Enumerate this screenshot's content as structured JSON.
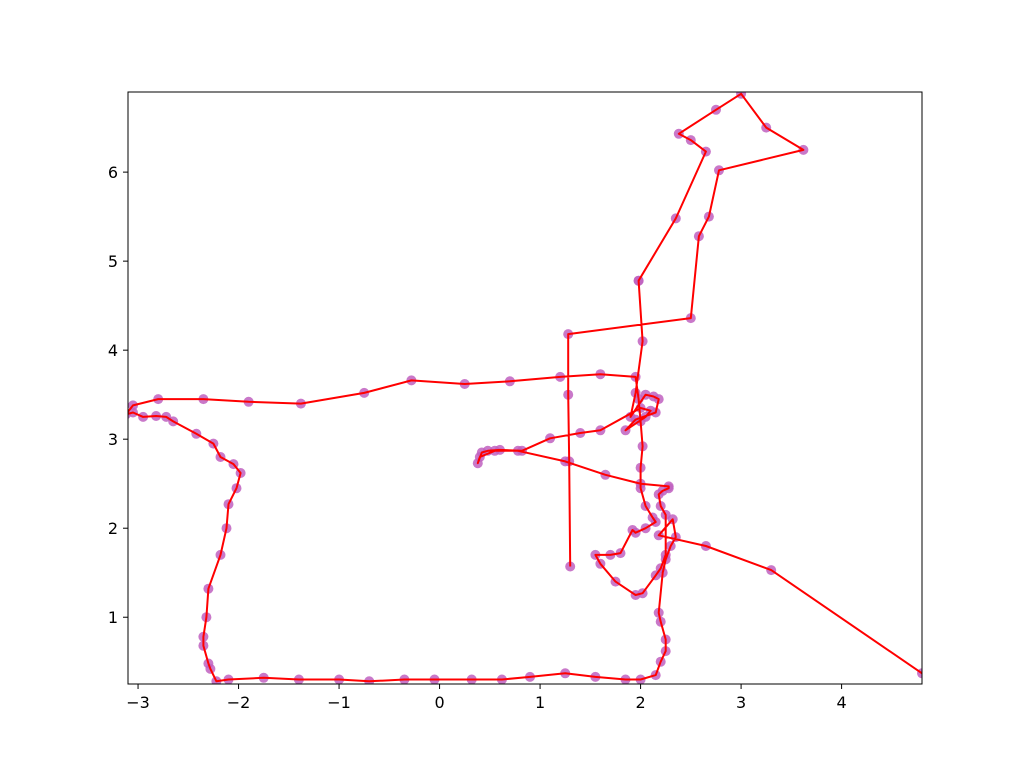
{
  "chart_data": {
    "type": "line",
    "title": "",
    "xlabel": "",
    "ylabel": "",
    "xlim": [
      -3.1,
      4.8
    ],
    "ylim": [
      0.25,
      6.9
    ],
    "grid": false,
    "x_ticks": [
      -3,
      -2,
      -1,
      0,
      1,
      2,
      3,
      4
    ],
    "y_ticks": [
      1,
      2,
      3,
      4,
      5,
      6
    ],
    "x_tick_labels": [
      "−3",
      "−2",
      "−1",
      "0",
      "1",
      "2",
      "3",
      "4"
    ],
    "y_tick_labels": [
      "1",
      "2",
      "3",
      "4",
      "5",
      "6"
    ],
    "line_color": "#ff0000",
    "marker_color": "#c060c0",
    "series": [
      {
        "x": [
          1.3,
          1.29,
          1.28,
          1.28,
          2.5,
          2.58,
          2.68,
          2.78,
          3.62,
          3.25,
          3.0,
          2.75,
          2.38,
          2.5,
          2.65,
          2.35,
          1.98,
          1.98,
          2.02,
          1.95,
          1.9,
          2.05,
          2.13,
          2.18,
          2.15,
          1.95,
          1.85,
          2.05,
          2.1,
          2.0,
          1.6,
          1.4,
          1.1,
          0.82,
          0.6,
          0.48,
          0.42,
          0.38,
          0.4,
          0.55,
          0.78,
          1.25,
          1.65,
          2.0,
          2.28,
          2.28,
          2.22,
          2.18,
          2.2,
          2.25,
          2.25,
          2.2,
          2.15,
          2.02,
          1.95,
          1.75,
          1.6,
          1.55,
          1.7,
          1.8,
          1.92,
          1.95,
          2.05,
          2.15,
          2.12,
          2.05,
          2.0,
          2.0,
          2.02,
          2.0,
          1.98,
          1.95,
          1.6,
          1.2,
          0.7,
          0.25,
          -0.28,
          -0.75,
          -1.38,
          -1.9,
          -2.35,
          -2.8,
          -3.05,
          -3.12,
          -3.05,
          -2.95,
          -2.82,
          -2.72,
          -2.65,
          -2.42,
          -2.25,
          -2.18,
          -2.05,
          -1.98,
          -2.02,
          -2.1,
          -2.12,
          -2.18,
          -2.3,
          -2.32,
          -2.35,
          -2.35,
          -2.3,
          -2.28,
          -2.22,
          -2.1,
          -1.75,
          -1.4,
          -1.0,
          -0.7,
          -0.35,
          -0.05,
          0.32,
          0.62,
          0.9,
          1.25,
          1.55,
          1.85,
          2.0,
          2.15,
          2.2,
          2.25,
          2.25,
          2.2,
          2.18,
          2.22,
          2.25,
          2.3,
          2.35,
          2.32,
          2.18,
          2.65,
          3.3,
          4.8
        ],
        "y": [
          1.57,
          2.75,
          3.5,
          4.18,
          4.36,
          5.28,
          5.5,
          6.02,
          6.25,
          6.5,
          6.88,
          6.7,
          6.43,
          6.36,
          6.23,
          5.48,
          4.78,
          4.78,
          4.1,
          3.52,
          3.25,
          3.5,
          3.48,
          3.45,
          3.3,
          3.22,
          3.1,
          3.25,
          3.32,
          3.35,
          3.1,
          3.07,
          3.01,
          2.87,
          2.88,
          2.87,
          2.85,
          2.73,
          2.8,
          2.87,
          2.87,
          2.75,
          2.6,
          2.5,
          2.47,
          2.45,
          2.42,
          2.38,
          2.25,
          2.15,
          1.7,
          1.55,
          1.47,
          1.27,
          1.25,
          1.4,
          1.6,
          1.7,
          1.7,
          1.72,
          1.98,
          1.95,
          2.0,
          2.07,
          2.12,
          2.25,
          2.45,
          2.68,
          2.92,
          3.2,
          3.45,
          3.7,
          3.73,
          3.7,
          3.65,
          3.62,
          3.66,
          3.52,
          3.4,
          3.42,
          3.45,
          3.45,
          3.38,
          3.28,
          3.3,
          3.25,
          3.26,
          3.25,
          3.2,
          3.06,
          2.95,
          2.8,
          2.72,
          2.62,
          2.45,
          2.27,
          2.0,
          1.7,
          1.32,
          1.0,
          0.78,
          0.68,
          0.48,
          0.42,
          0.28,
          0.3,
          0.32,
          0.3,
          0.3,
          0.28,
          0.3,
          0.3,
          0.3,
          0.3,
          0.33,
          0.37,
          0.33,
          0.3,
          0.3,
          0.35,
          0.5,
          0.62,
          0.75,
          0.95,
          1.05,
          1.5,
          1.65,
          1.8,
          1.9,
          2.1,
          1.92,
          1.8,
          1.53,
          0.37
        ]
      }
    ]
  }
}
